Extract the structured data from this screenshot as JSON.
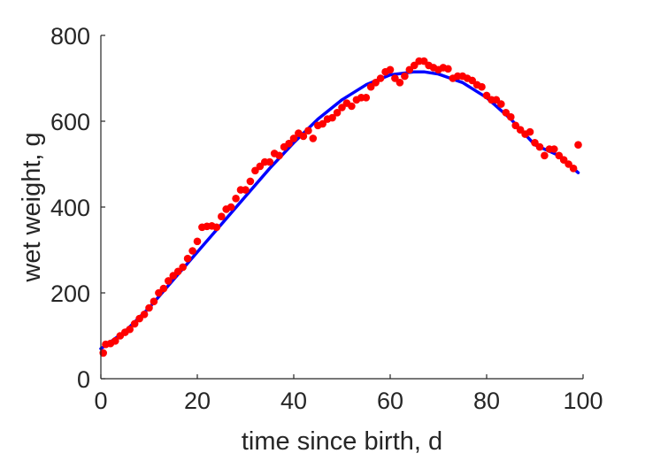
{
  "chart_data": {
    "type": "scatter",
    "title": "",
    "xlabel": "time since birth, d",
    "ylabel": "wet weight, g",
    "xlim": [
      0,
      100
    ],
    "ylim": [
      0,
      800
    ],
    "x_ticks": [
      "0",
      "20",
      "40",
      "60",
      "80",
      "100"
    ],
    "y_ticks": [
      "0",
      "200",
      "400",
      "600",
      "800"
    ],
    "grid": false,
    "legend": "none",
    "colors": {
      "data": "#ff0000",
      "fit": "#0000ff",
      "axis": "#262626"
    },
    "series": [
      {
        "type": "scatter",
        "x": [
          0.5,
          1,
          2,
          3,
          4,
          5,
          6,
          7,
          8,
          9,
          10,
          11,
          12,
          13,
          14,
          15,
          16,
          17,
          18,
          19,
          20,
          21,
          22,
          23,
          24,
          25,
          26,
          27,
          28,
          29,
          30,
          31,
          32,
          33,
          34,
          35,
          36,
          37,
          38,
          39,
          40,
          41,
          42,
          43,
          44,
          45,
          46,
          47,
          48,
          49,
          50,
          51,
          52,
          53,
          54,
          55,
          56,
          57,
          58,
          59,
          60,
          61,
          62,
          63,
          64,
          65,
          66,
          67,
          68,
          69,
          70,
          71,
          72,
          73,
          74,
          75,
          76,
          77,
          78,
          79,
          80,
          81,
          82,
          83,
          84,
          85,
          86,
          87,
          88,
          89,
          90,
          91,
          92,
          93,
          94,
          95,
          96,
          97,
          98,
          99
        ],
        "y": [
          60,
          80,
          82,
          88,
          100,
          108,
          115,
          128,
          140,
          150,
          165,
          180,
          200,
          210,
          228,
          240,
          250,
          260,
          280,
          298,
          320,
          353,
          355,
          356,
          353,
          378,
          395,
          400,
          420,
          440,
          440,
          460,
          485,
          495,
          505,
          505,
          525,
          520,
          540,
          548,
          560,
          572,
          565,
          578,
          560,
          590,
          594,
          605,
          608,
          620,
          632,
          642,
          635,
          650,
          655,
          655,
          680,
          690,
          700,
          715,
          720,
          700,
          690,
          705,
          720,
          730,
          740,
          740,
          730,
          725,
          720,
          725,
          722,
          700,
          705,
          705,
          700,
          695,
          685,
          680,
          660,
          650,
          650,
          640,
          620,
          610,
          590,
          580,
          570,
          575,
          550,
          540,
          520,
          535,
          535,
          520,
          510,
          500,
          490,
          545
        ]
      },
      {
        "type": "line",
        "x": [
          0,
          5,
          10,
          15,
          20,
          25,
          30,
          35,
          40,
          45,
          50,
          55,
          60,
          65,
          67,
          70,
          75,
          80,
          85,
          90,
          95,
          99
        ],
        "y": [
          70,
          110,
          165,
          230,
          295,
          360,
          425,
          490,
          550,
          605,
          650,
          685,
          708,
          715,
          715,
          710,
          690,
          655,
          605,
          545,
          520,
          480
        ]
      }
    ]
  }
}
